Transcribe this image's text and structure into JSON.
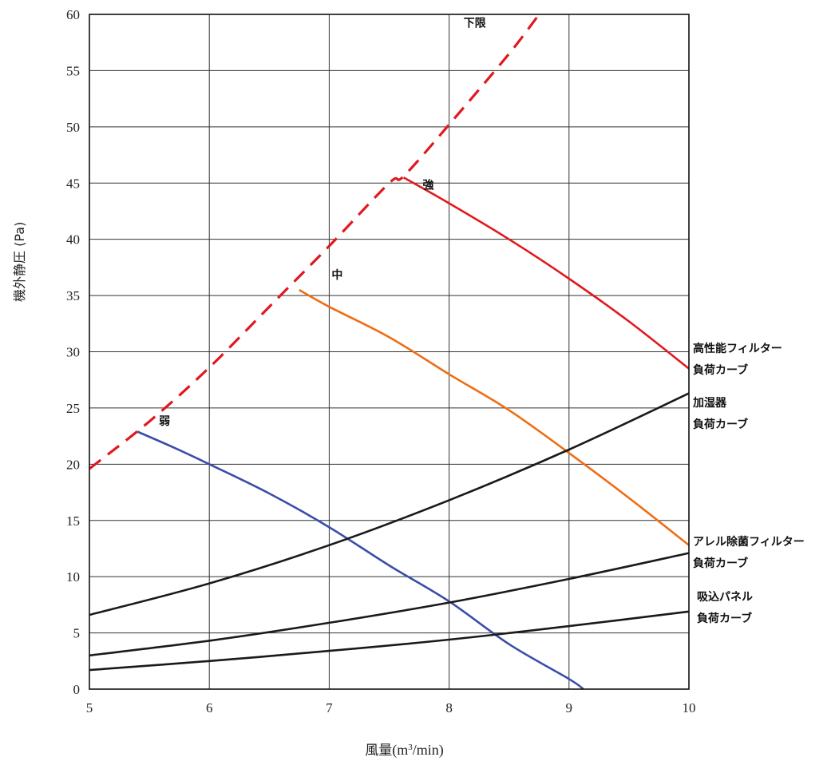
{
  "chart_data": {
    "type": "line",
    "title": "",
    "xlabel": "風量(m³/min)",
    "xlabel_main": "風量",
    "xlabel_unit_pre": "(m",
    "xlabel_unit_sup": "3",
    "xlabel_unit_post": "/min)",
    "ylabel": "機外静圧 (Pa)",
    "xlim": [
      5,
      10
    ],
    "ylim": [
      0,
      60
    ],
    "xticks": [
      "5",
      "6",
      "7",
      "8",
      "9",
      "10"
    ],
    "yticks": [
      "0",
      "5",
      "10",
      "15",
      "20",
      "25",
      "30",
      "35",
      "40",
      "45",
      "50",
      "55",
      "60"
    ],
    "grid": true,
    "series": [
      {
        "name": "下限",
        "color": "#e0191e",
        "style": "dashed",
        "x": [
          5.0,
          5.5,
          6.0,
          6.5,
          7.0,
          7.5,
          7.62,
          8.0,
          8.5,
          8.75
        ],
        "y": [
          19.6,
          23.8,
          28.6,
          34.0,
          39.4,
          45.0,
          45.6,
          50.2,
          56.5,
          60.0
        ]
      },
      {
        "name": "強",
        "color": "#e0191e",
        "style": "solid",
        "x": [
          7.62,
          8.0,
          8.5,
          9.0,
          9.5,
          10.0
        ],
        "y": [
          45.5,
          43.2,
          40.0,
          36.5,
          32.7,
          28.5
        ]
      },
      {
        "name": "中",
        "color": "#ee6d14",
        "style": "solid",
        "x": [
          6.75,
          7.0,
          7.5,
          8.0,
          8.5,
          9.0,
          9.5,
          10.0
        ],
        "y": [
          35.5,
          34.0,
          31.3,
          28.0,
          24.8,
          21.0,
          17.0,
          12.8
        ]
      },
      {
        "name": "弱",
        "color": "#3a4ea8",
        "style": "solid",
        "x": [
          5.4,
          5.7,
          6.0,
          6.5,
          7.0,
          7.5,
          8.0,
          8.5,
          9.0,
          9.12
        ],
        "y": [
          22.9,
          21.5,
          20.0,
          17.4,
          14.4,
          11.0,
          7.8,
          4.0,
          0.9,
          0.0
        ]
      },
      {
        "name": "加湿器負荷カーブ",
        "color": "#1a1a1a",
        "style": "solid",
        "x": [
          5.0,
          6.0,
          7.0,
          8.0,
          9.0,
          10.0
        ],
        "y": [
          6.6,
          9.4,
          12.8,
          16.8,
          21.3,
          26.3
        ]
      },
      {
        "name": "アレル除菌フィルター負荷カーブ",
        "color": "#1a1a1a",
        "style": "solid",
        "x": [
          5.0,
          6.0,
          7.0,
          8.0,
          9.0,
          10.0
        ],
        "y": [
          3.0,
          4.3,
          5.9,
          7.7,
          9.8,
          12.1
        ]
      },
      {
        "name": "吸込パネル負荷カーブ",
        "color": "#1a1a1a",
        "style": "solid",
        "x": [
          5.0,
          6.0,
          7.0,
          8.0,
          9.0,
          10.0
        ],
        "y": [
          1.7,
          2.5,
          3.4,
          4.4,
          5.6,
          6.9
        ]
      }
    ],
    "annotations": [
      {
        "key": "lower_limit",
        "text": "下限",
        "x": 8.12,
        "y": 58.9
      },
      {
        "key": "strong",
        "text": "強",
        "x": 7.78,
        "y": 44.5
      },
      {
        "key": "medium",
        "text": "中",
        "x": 7.02,
        "y": 36.5
      },
      {
        "key": "weak",
        "text": "弱",
        "x": 5.58,
        "y": 23.5
      }
    ],
    "right_labels": [
      {
        "key": "hepa",
        "lines": [
          "高性能フィルター",
          "負荷カーブ"
        ]
      },
      {
        "key": "humidifier",
        "lines": [
          "加湿器",
          "負荷カーブ"
        ]
      },
      {
        "key": "allergen",
        "lines": [
          "アレル除菌フィルター",
          "負荷カーブ"
        ]
      },
      {
        "key": "intake",
        "lines": [
          "吸込パネル",
          "負荷カーブ"
        ]
      }
    ]
  }
}
